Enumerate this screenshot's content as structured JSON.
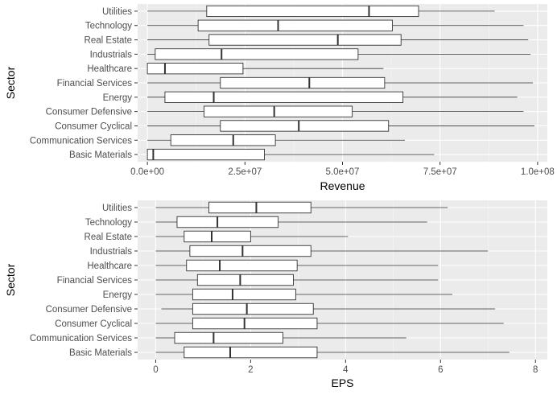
{
  "chart_data": [
    {
      "type": "boxplot",
      "orientation": "horizontal",
      "xlabel": "Revenue",
      "ylabel": "Sector",
      "xlim": [
        -2500000,
        102500000
      ],
      "xticks": [
        0,
        25000000,
        50000000,
        75000000,
        100000000
      ],
      "xtick_labels": [
        "0.0e+00",
        "2.5e+07",
        "5.0e+07",
        "7.5e+07",
        "1.0e+08"
      ],
      "grid": true,
      "categories": [
        "Basic Materials",
        "Communication Services",
        "Consumer Cyclical",
        "Consumer Defensive",
        "Energy",
        "Financial Services",
        "Healthcare",
        "Industrials",
        "Real Estate",
        "Technology",
        "Utilities"
      ],
      "boxes": [
        {
          "min": 0,
          "q1": 0,
          "median": 1500000,
          "q3": 30000000,
          "max": 73500000
        },
        {
          "min": 0,
          "q1": 6000000,
          "median": 22000000,
          "q3": 32800000,
          "max": 66000000
        },
        {
          "min": 0,
          "q1": 18700000,
          "median": 38800000,
          "q3": 61800000,
          "max": 99200000
        },
        {
          "min": 0,
          "q1": 14500000,
          "median": 32500000,
          "q3": 52500000,
          "max": 96400000
        },
        {
          "min": 0,
          "q1": 4500000,
          "median": 17000000,
          "q3": 65500000,
          "max": 94800000
        },
        {
          "min": 0,
          "q1": 18700000,
          "median": 41500000,
          "q3": 60800000,
          "max": 98800000
        },
        {
          "min": 0,
          "q1": 0,
          "median": 4500000,
          "q3": 24500000,
          "max": 60500000
        },
        {
          "min": 0,
          "q1": 2000000,
          "median": 19000000,
          "q3": 54000000,
          "max": 98200000
        },
        {
          "min": 0,
          "q1": 15800000,
          "median": 48800000,
          "q3": 65000000,
          "max": 97600000
        },
        {
          "min": 0,
          "q1": 13000000,
          "median": 33500000,
          "q3": 62800000,
          "max": 96400000
        },
        {
          "min": 0,
          "q1": 15200000,
          "median": 56800000,
          "q3": 69500000,
          "max": 89000000
        }
      ]
    },
    {
      "type": "boxplot",
      "orientation": "horizontal",
      "xlabel": "EPS",
      "ylabel": "Sector",
      "xlim": [
        -0.38,
        8.25
      ],
      "xticks": [
        0,
        2,
        4,
        6,
        8
      ],
      "xtick_labels": [
        "0",
        "2",
        "4",
        "6",
        "8"
      ],
      "grid": true,
      "categories": [
        "Basic Materials",
        "Communication Services",
        "Consumer Cyclical",
        "Consumer Defensive",
        "Energy",
        "Financial Services",
        "Healthcare",
        "Industrials",
        "Real Estate",
        "Technology",
        "Utilities"
      ],
      "boxes": [
        {
          "min": 0,
          "q1": 0.6,
          "median": 1.57,
          "q3": 3.4,
          "max": 7.45
        },
        {
          "min": 0,
          "q1": 0.4,
          "median": 1.22,
          "q3": 2.68,
          "max": 5.28
        },
        {
          "min": 0,
          "q1": 0.78,
          "median": 1.87,
          "q3": 3.4,
          "max": 7.33
        },
        {
          "min": 0.12,
          "q1": 0.78,
          "median": 1.92,
          "q3": 3.32,
          "max": 7.15
        },
        {
          "min": 0,
          "q1": 0.78,
          "median": 1.62,
          "q3": 2.95,
          "max": 6.25
        },
        {
          "min": 0,
          "q1": 0.88,
          "median": 1.78,
          "q3": 2.9,
          "max": 5.95
        },
        {
          "min": 0,
          "q1": 0.65,
          "median": 1.35,
          "q3": 2.98,
          "max": 5.95
        },
        {
          "min": 0,
          "q1": 0.72,
          "median": 1.83,
          "q3": 3.27,
          "max": 7.0
        },
        {
          "min": 0,
          "q1": 0.6,
          "median": 1.18,
          "q3": 2.0,
          "max": 4.05
        },
        {
          "min": 0,
          "q1": 0.45,
          "median": 1.3,
          "q3": 2.58,
          "max": 5.72
        },
        {
          "min": 0,
          "q1": 1.12,
          "median": 2.12,
          "q3": 3.27,
          "max": 6.15
        }
      ]
    }
  ]
}
